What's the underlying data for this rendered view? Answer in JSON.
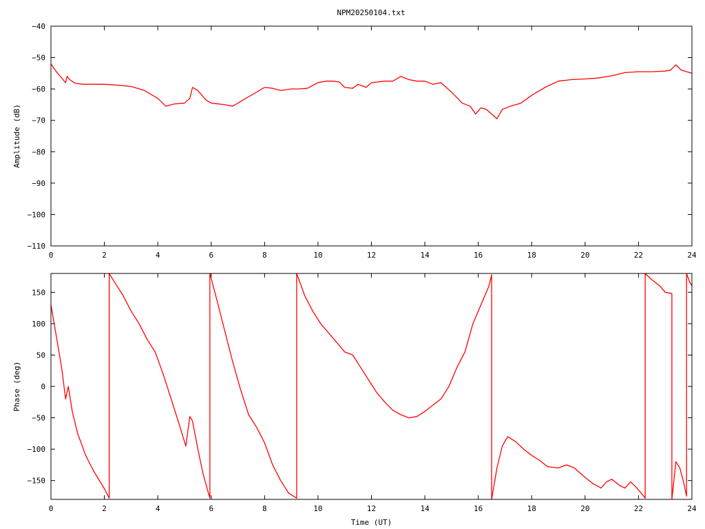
{
  "title": "NPM20250104.txt",
  "colors": {
    "trace": "#ff0000",
    "axes": "#000000",
    "background": "#ffffff"
  },
  "chart_data": [
    {
      "type": "line",
      "ylabel": "Amplitude (dB)",
      "xlabel": "",
      "xlim": [
        0,
        24
      ],
      "ylim": [
        -110,
        -40
      ],
      "xticks": [
        0,
        2,
        4,
        6,
        8,
        10,
        12,
        14,
        16,
        18,
        20,
        22,
        24
      ],
      "yticks": [
        -40,
        -50,
        -60,
        -70,
        -80,
        -90,
        -100,
        -110
      ],
      "grid": false,
      "legend": "none",
      "series": [
        {
          "x": [
            0,
            0.2,
            0.4,
            0.55,
            0.6,
            0.7,
            0.9,
            1.2,
            1.5,
            2,
            2.5,
            3,
            3.5,
            4,
            4.3,
            4.6,
            5,
            5.2,
            5.3,
            5.5,
            5.8,
            6,
            6.5,
            6.8,
            7.2,
            7.6,
            8,
            8.3,
            8.6,
            9,
            9.3,
            9.6,
            10,
            10.3,
            10.6,
            10.8,
            11,
            11.3,
            11.5,
            11.8,
            12,
            12.5,
            12.8,
            13.1,
            13.4,
            13.7,
            14,
            14.3,
            14.6,
            15,
            15.4,
            15.7,
            15.9,
            16.1,
            16.3,
            16.5,
            16.7,
            16.9,
            17.2,
            17.6,
            18,
            18.5,
            19,
            19.5,
            20,
            20.5,
            21,
            21.5,
            22,
            22.5,
            23,
            23.2,
            23.4,
            23.6,
            24
          ],
          "y": [
            -52,
            -54.5,
            -56.5,
            -58,
            -56,
            -57,
            -58.2,
            -58.5,
            -58.5,
            -58.5,
            -58.8,
            -59.2,
            -60.5,
            -63,
            -65.5,
            -64.8,
            -64.5,
            -63,
            -59.5,
            -60.5,
            -63.5,
            -64.5,
            -65,
            -65.5,
            -63.5,
            -61.5,
            -59.5,
            -59.8,
            -60.5,
            -60,
            -60,
            -59.8,
            -58,
            -57.5,
            -57.5,
            -57.8,
            -59.5,
            -59.8,
            -58.5,
            -59.5,
            -58,
            -57.5,
            -57.5,
            -56,
            -57,
            -57.5,
            -57.5,
            -58.5,
            -58,
            -61,
            -64.5,
            -65.5,
            -68,
            -66,
            -66.5,
            -68,
            -69.5,
            -66.5,
            -65.5,
            -64.5,
            -62,
            -59.5,
            -57.5,
            -57,
            -56.8,
            -56.5,
            -55.8,
            -54.8,
            -54.5,
            -54.5,
            -54.3,
            -54,
            -52.3,
            -54,
            -55
          ]
        }
      ]
    },
    {
      "type": "line",
      "ylabel": "Phase (deg)",
      "xlabel": "Time (UT)",
      "xlim": [
        0,
        24
      ],
      "ylim": [
        -180,
        180
      ],
      "xticks": [
        0,
        2,
        4,
        6,
        8,
        10,
        12,
        14,
        16,
        18,
        20,
        22,
        24
      ],
      "yticks": [
        150,
        100,
        50,
        0,
        -50,
        -100,
        -150
      ],
      "grid": false,
      "legend": "none",
      "wraps_at": [
        2.18,
        5.95,
        9.2,
        16.5,
        22.25,
        23.25,
        23.8
      ],
      "series": [
        {
          "x": [
            0,
            0.2,
            0.4,
            0.55,
            0.65,
            0.8,
            1,
            1.3,
            1.6,
            2,
            2.18,
            2.18,
            2.4,
            2.7,
            3,
            3.3,
            3.6,
            3.9,
            4.2,
            4.5,
            4.8,
            5.05,
            5.2,
            5.3,
            5.5,
            5.7,
            5.95,
            5.95,
            6.2,
            6.5,
            6.8,
            7.1,
            7.4,
            7.7,
            8,
            8.3,
            8.6,
            8.9,
            9.2,
            9.2,
            9.5,
            9.8,
            10.1,
            10.4,
            10.7,
            11,
            11.3,
            11.6,
            11.9,
            12.2,
            12.5,
            12.8,
            13.1,
            13.4,
            13.7,
            14,
            14.3,
            14.6,
            14.9,
            15.2,
            15.5,
            15.8,
            16.1,
            16.4,
            16.5,
            16.5,
            16.7,
            16.9,
            17.1,
            17.4,
            17.7,
            18,
            18.3,
            18.6,
            19,
            19.3,
            19.6,
            20,
            20.3,
            20.6,
            20.8,
            21,
            21.3,
            21.5,
            21.7,
            21.9,
            22.1,
            22.25,
            22.25,
            22.5,
            22.8,
            23,
            23.25,
            23.25,
            23.4,
            23.55,
            23.7,
            23.8,
            23.8,
            23.9,
            24
          ],
          "y": [
            130,
            80,
            30,
            -20,
            0,
            -40,
            -75,
            -110,
            -135,
            -163,
            -178,
            180,
            165,
            145,
            120,
            100,
            75,
            55,
            20,
            -20,
            -60,
            -95,
            -48,
            -55,
            -100,
            -140,
            -178,
            180,
            140,
            90,
            40,
            -5,
            -45,
            -65,
            -90,
            -125,
            -150,
            -170,
            -178,
            180,
            145,
            120,
            100,
            85,
            70,
            55,
            50,
            30,
            10,
            -10,
            -25,
            -38,
            -45,
            -50,
            -48,
            -40,
            -30,
            -20,
            0,
            30,
            55,
            100,
            130,
            160,
            178,
            -180,
            -130,
            -95,
            -80,
            -88,
            -100,
            -110,
            -118,
            -128,
            -130,
            -125,
            -130,
            -145,
            -155,
            -162,
            -152,
            -148,
            -158,
            -162,
            -152,
            -160,
            -170,
            -178,
            180,
            170,
            160,
            150,
            148,
            -180,
            -120,
            -130,
            -155,
            -175,
            180,
            168,
            160
          ]
        }
      ]
    }
  ]
}
